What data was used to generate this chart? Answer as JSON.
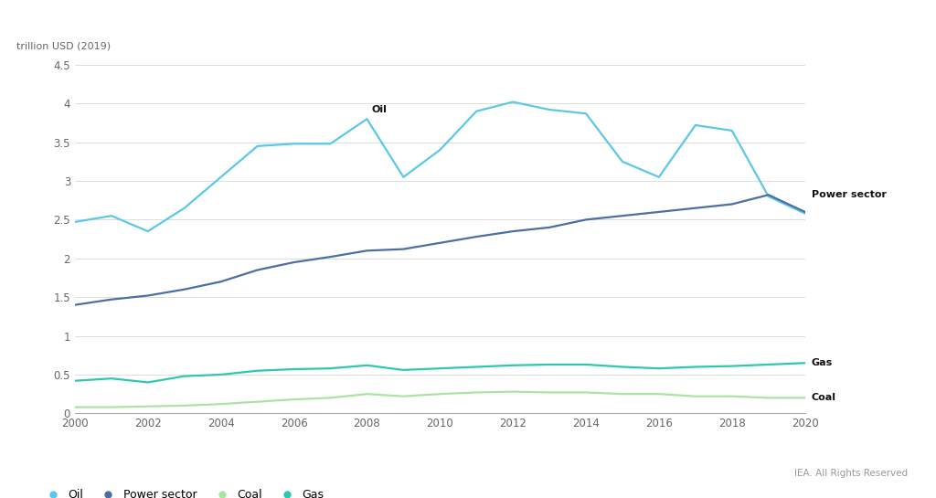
{
  "years": [
    2000,
    2001,
    2002,
    2003,
    2004,
    2005,
    2006,
    2007,
    2008,
    2009,
    2010,
    2011,
    2012,
    2013,
    2014,
    2015,
    2016,
    2017,
    2018,
    2019,
    2020
  ],
  "oil": [
    2.47,
    2.55,
    2.35,
    2.65,
    3.05,
    3.45,
    3.48,
    3.48,
    3.8,
    3.05,
    3.4,
    3.9,
    4.02,
    3.92,
    3.87,
    3.25,
    3.05,
    3.72,
    3.65,
    2.8,
    2.58
  ],
  "power_sector": [
    1.4,
    1.47,
    1.52,
    1.6,
    1.7,
    1.85,
    1.95,
    2.02,
    2.1,
    2.12,
    2.2,
    2.28,
    2.35,
    2.4,
    2.5,
    2.55,
    2.6,
    2.65,
    2.7,
    2.82,
    2.6
  ],
  "coal": [
    0.08,
    0.08,
    0.09,
    0.1,
    0.12,
    0.15,
    0.18,
    0.2,
    0.25,
    0.22,
    0.25,
    0.27,
    0.28,
    0.27,
    0.27,
    0.25,
    0.25,
    0.22,
    0.22,
    0.2,
    0.2
  ],
  "gas": [
    0.42,
    0.45,
    0.4,
    0.48,
    0.5,
    0.55,
    0.57,
    0.58,
    0.62,
    0.56,
    0.58,
    0.6,
    0.62,
    0.63,
    0.63,
    0.6,
    0.58,
    0.6,
    0.61,
    0.63,
    0.65
  ],
  "oil_color": "#5BC8E8",
  "power_sector_color": "#4B6FA5",
  "coal_color": "#A8E6A0",
  "gas_color": "#2DC8B0",
  "ylabel": "trillion USD (2019)",
  "ylim": [
    0,
    4.5
  ],
  "yticks": [
    0,
    0.5,
    1.0,
    1.5,
    2.0,
    2.5,
    3.0,
    3.5,
    4.0,
    4.5
  ],
  "xlim": [
    2000,
    2020
  ],
  "xticks": [
    2000,
    2002,
    2004,
    2006,
    2008,
    2010,
    2012,
    2014,
    2016,
    2018,
    2020
  ],
  "oil_label": "Oil",
  "power_sector_label": "Power sector",
  "gas_label": "Gas",
  "coal_label": "Coal",
  "iea_text": "IEA. All Rights Reserved",
  "background_color": "#FFFFFF",
  "grid_color": "#DDDDDD",
  "annotation_color": "#111111"
}
